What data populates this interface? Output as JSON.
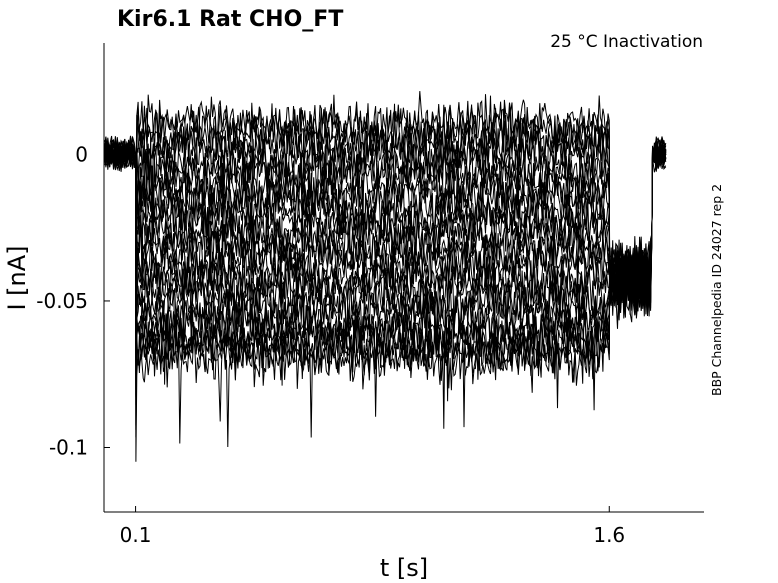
{
  "chart_data": {
    "type": "line",
    "title": "Kir6.1  Rat  CHO_FT",
    "subtitle": "25 °C  Inactivation",
    "side_note": "BBP Channelpedia ID 24027 rep 2",
    "xlabel": "t [s]",
    "ylabel": "I [nA]",
    "xlim": [
      0.0,
      1.9
    ],
    "ylim": [
      -0.122,
      0.038
    ],
    "xticks": [
      0.1,
      1.6
    ],
    "xtick_labels": [
      "0.1",
      "1.6"
    ],
    "yticks": [
      0,
      -0.05,
      -0.1
    ],
    "ytick_labels": [
      "0",
      "-0.05",
      "-0.1"
    ],
    "grid": false,
    "legend": "none",
    "line_color": "#000000",
    "n_sweeps": 30,
    "pulse_start_s": 0.1,
    "pulse_end_s": 1.6,
    "baseline_nA": 0.0,
    "sweep_levels_nA": [
      0.011,
      0.009,
      0.007,
      0.004,
      0.001,
      -0.002,
      -0.005,
      -0.008,
      -0.011,
      -0.014,
      -0.017,
      -0.02,
      -0.023,
      -0.026,
      -0.029,
      -0.032,
      -0.035,
      -0.038,
      -0.041,
      -0.044,
      -0.047,
      -0.05,
      -0.053,
      -0.056,
      -0.059,
      -0.062,
      -0.064,
      -0.066,
      -0.068,
      -0.07
    ],
    "tail_level_nA": -0.042,
    "recovery_time_s": 1.735,
    "end_time_s": 1.78
  }
}
